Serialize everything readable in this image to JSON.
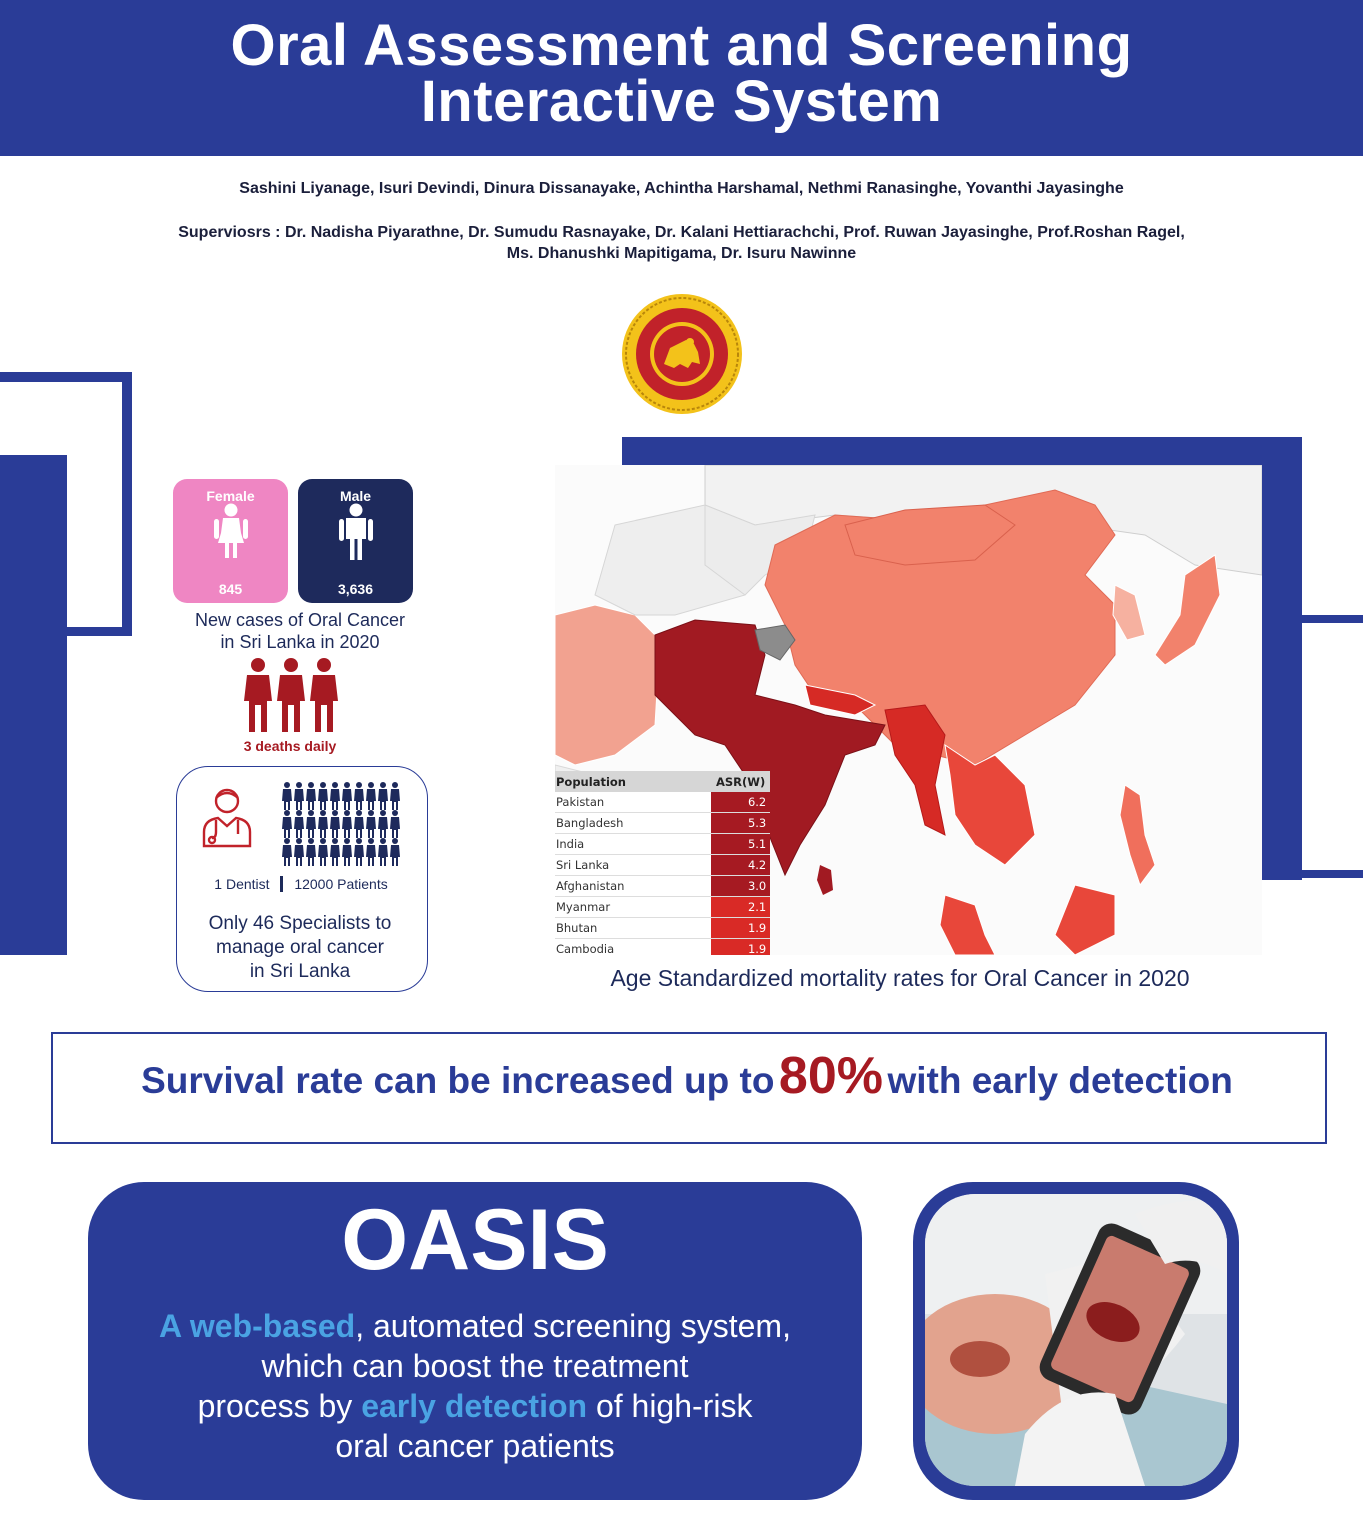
{
  "header": {
    "title_line1": "Oral Assessment and Screening",
    "title_line2": "Interactive System"
  },
  "authors": "Sashini Liyanage, Isuri Devindi, Dinura Dissanayake, Achintha Harshamal, Nethmi Ranasinghe, Yovanthi Jayasinghe",
  "supervisors_line1": "Superviosrs : Dr. Nadisha Piyarathne, Dr. Sumudu Rasnayake, Dr. Kalani Hettiarachchi, Prof. Ruwan Jayasinghe, Prof.Roshan Ragel,",
  "supervisors_line2": "Ms. Dhanushki Mapitigama, Dr. Isuru Nawinne",
  "stats": {
    "female": {
      "label": "Female",
      "value": "845",
      "color": "#ef86c3"
    },
    "male": {
      "label": "Male",
      "value": "3,636",
      "color": "#1e2a5c"
    },
    "new_cases_line1": "New cases of Oral Cancer",
    "new_cases_line2": "in Sri Lanka in 2020",
    "deaths": "3 deaths daily",
    "dentist": "1 Dentist",
    "patients": "12000 Patients",
    "specialists_line1": "Only 46 Specialists to",
    "specialists_line2": "manage oral cancer",
    "specialists_line3": "in Sri Lanka"
  },
  "map": {
    "caption": "Age Standardized mortality rates for Oral Cancer in 2020",
    "table_header": {
      "population": "Population",
      "asr": "ASR(W)"
    },
    "rows": [
      {
        "country": "Pakistan",
        "asr": "6.2",
        "color": "#a61a22"
      },
      {
        "country": "Bangladesh",
        "asr": "5.3",
        "color": "#a61a22"
      },
      {
        "country": "India",
        "asr": "5.1",
        "color": "#a61a22"
      },
      {
        "country": "Sri Lanka",
        "asr": "4.2",
        "color": "#a61a22"
      },
      {
        "country": "Afghanistan",
        "asr": "3.0",
        "color": "#a61a22"
      },
      {
        "country": "Myanmar",
        "asr": "2.1",
        "color": "#d92a26"
      },
      {
        "country": "Bhutan",
        "asr": "1.9",
        "color": "#d92a26"
      },
      {
        "country": "Cambodia",
        "asr": "1.9",
        "color": "#d92a26"
      }
    ]
  },
  "survival": {
    "before": "Survival rate can be increased up to",
    "highlight": "80%",
    "after": "with early detection"
  },
  "oasis": {
    "title": "OASIS",
    "hl1": "A web-based",
    "t1": ", automated screening system,",
    "t2": "which can boost the treatment",
    "t3": "process by",
    "hl2": "early detection",
    "t4": "of high-risk",
    "t5": "oral cancer patients"
  },
  "colors": {
    "brand_blue": "#2a3c97",
    "accent_red": "#a61a22",
    "highlight_blue": "#4aa3e3"
  }
}
